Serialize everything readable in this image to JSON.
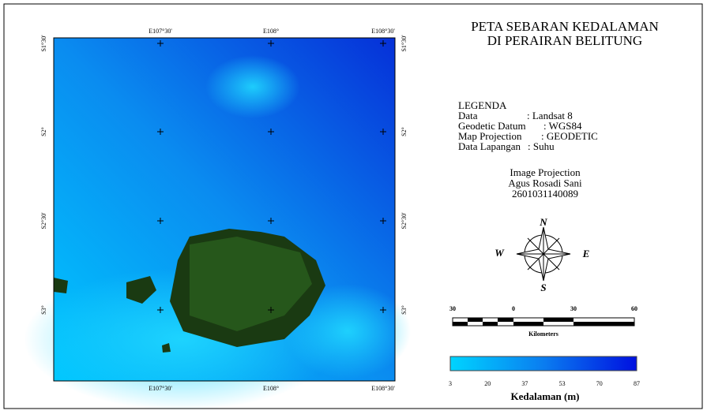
{
  "title": [
    "PETA SEBARAN KEDALAMAN",
    "DI PERAIRAN BELITUNG"
  ],
  "map": {
    "top_labels": [
      "E107°30'",
      "E108°",
      "E108°30'"
    ],
    "bottom_labels": [
      "E107°30'",
      "E108°",
      "E108°30'"
    ],
    "left_labels": [
      "S1°30'",
      "S2°",
      "S2°30'",
      "S3°"
    ],
    "right_labels": [
      "S1°30'",
      "S2°",
      "S2°30'",
      "S3°"
    ]
  },
  "legend": {
    "heading": "LEGENDA",
    "rows": [
      [
        "Data",
        ": Landsat 8"
      ],
      [
        "Geodetic Datum",
        ": WGS84"
      ],
      [
        "Map Projection",
        ": GEODETIC"
      ],
      [
        "Data Lapangan",
        ": Suhu"
      ]
    ]
  },
  "credit": [
    "Image Projection",
    "Agus Rosadi Sani",
    "2601031140089"
  ],
  "compass": {
    "n": "N",
    "s": "S",
    "w": "W",
    "e": "E"
  },
  "scale_bar": {
    "labels": [
      30,
      0,
      30,
      60
    ],
    "unit": "Kilometers"
  },
  "color_bar": {
    "ticks": [
      3,
      20,
      37,
      53,
      70,
      87
    ],
    "label": "Kedalaman (m)"
  }
}
